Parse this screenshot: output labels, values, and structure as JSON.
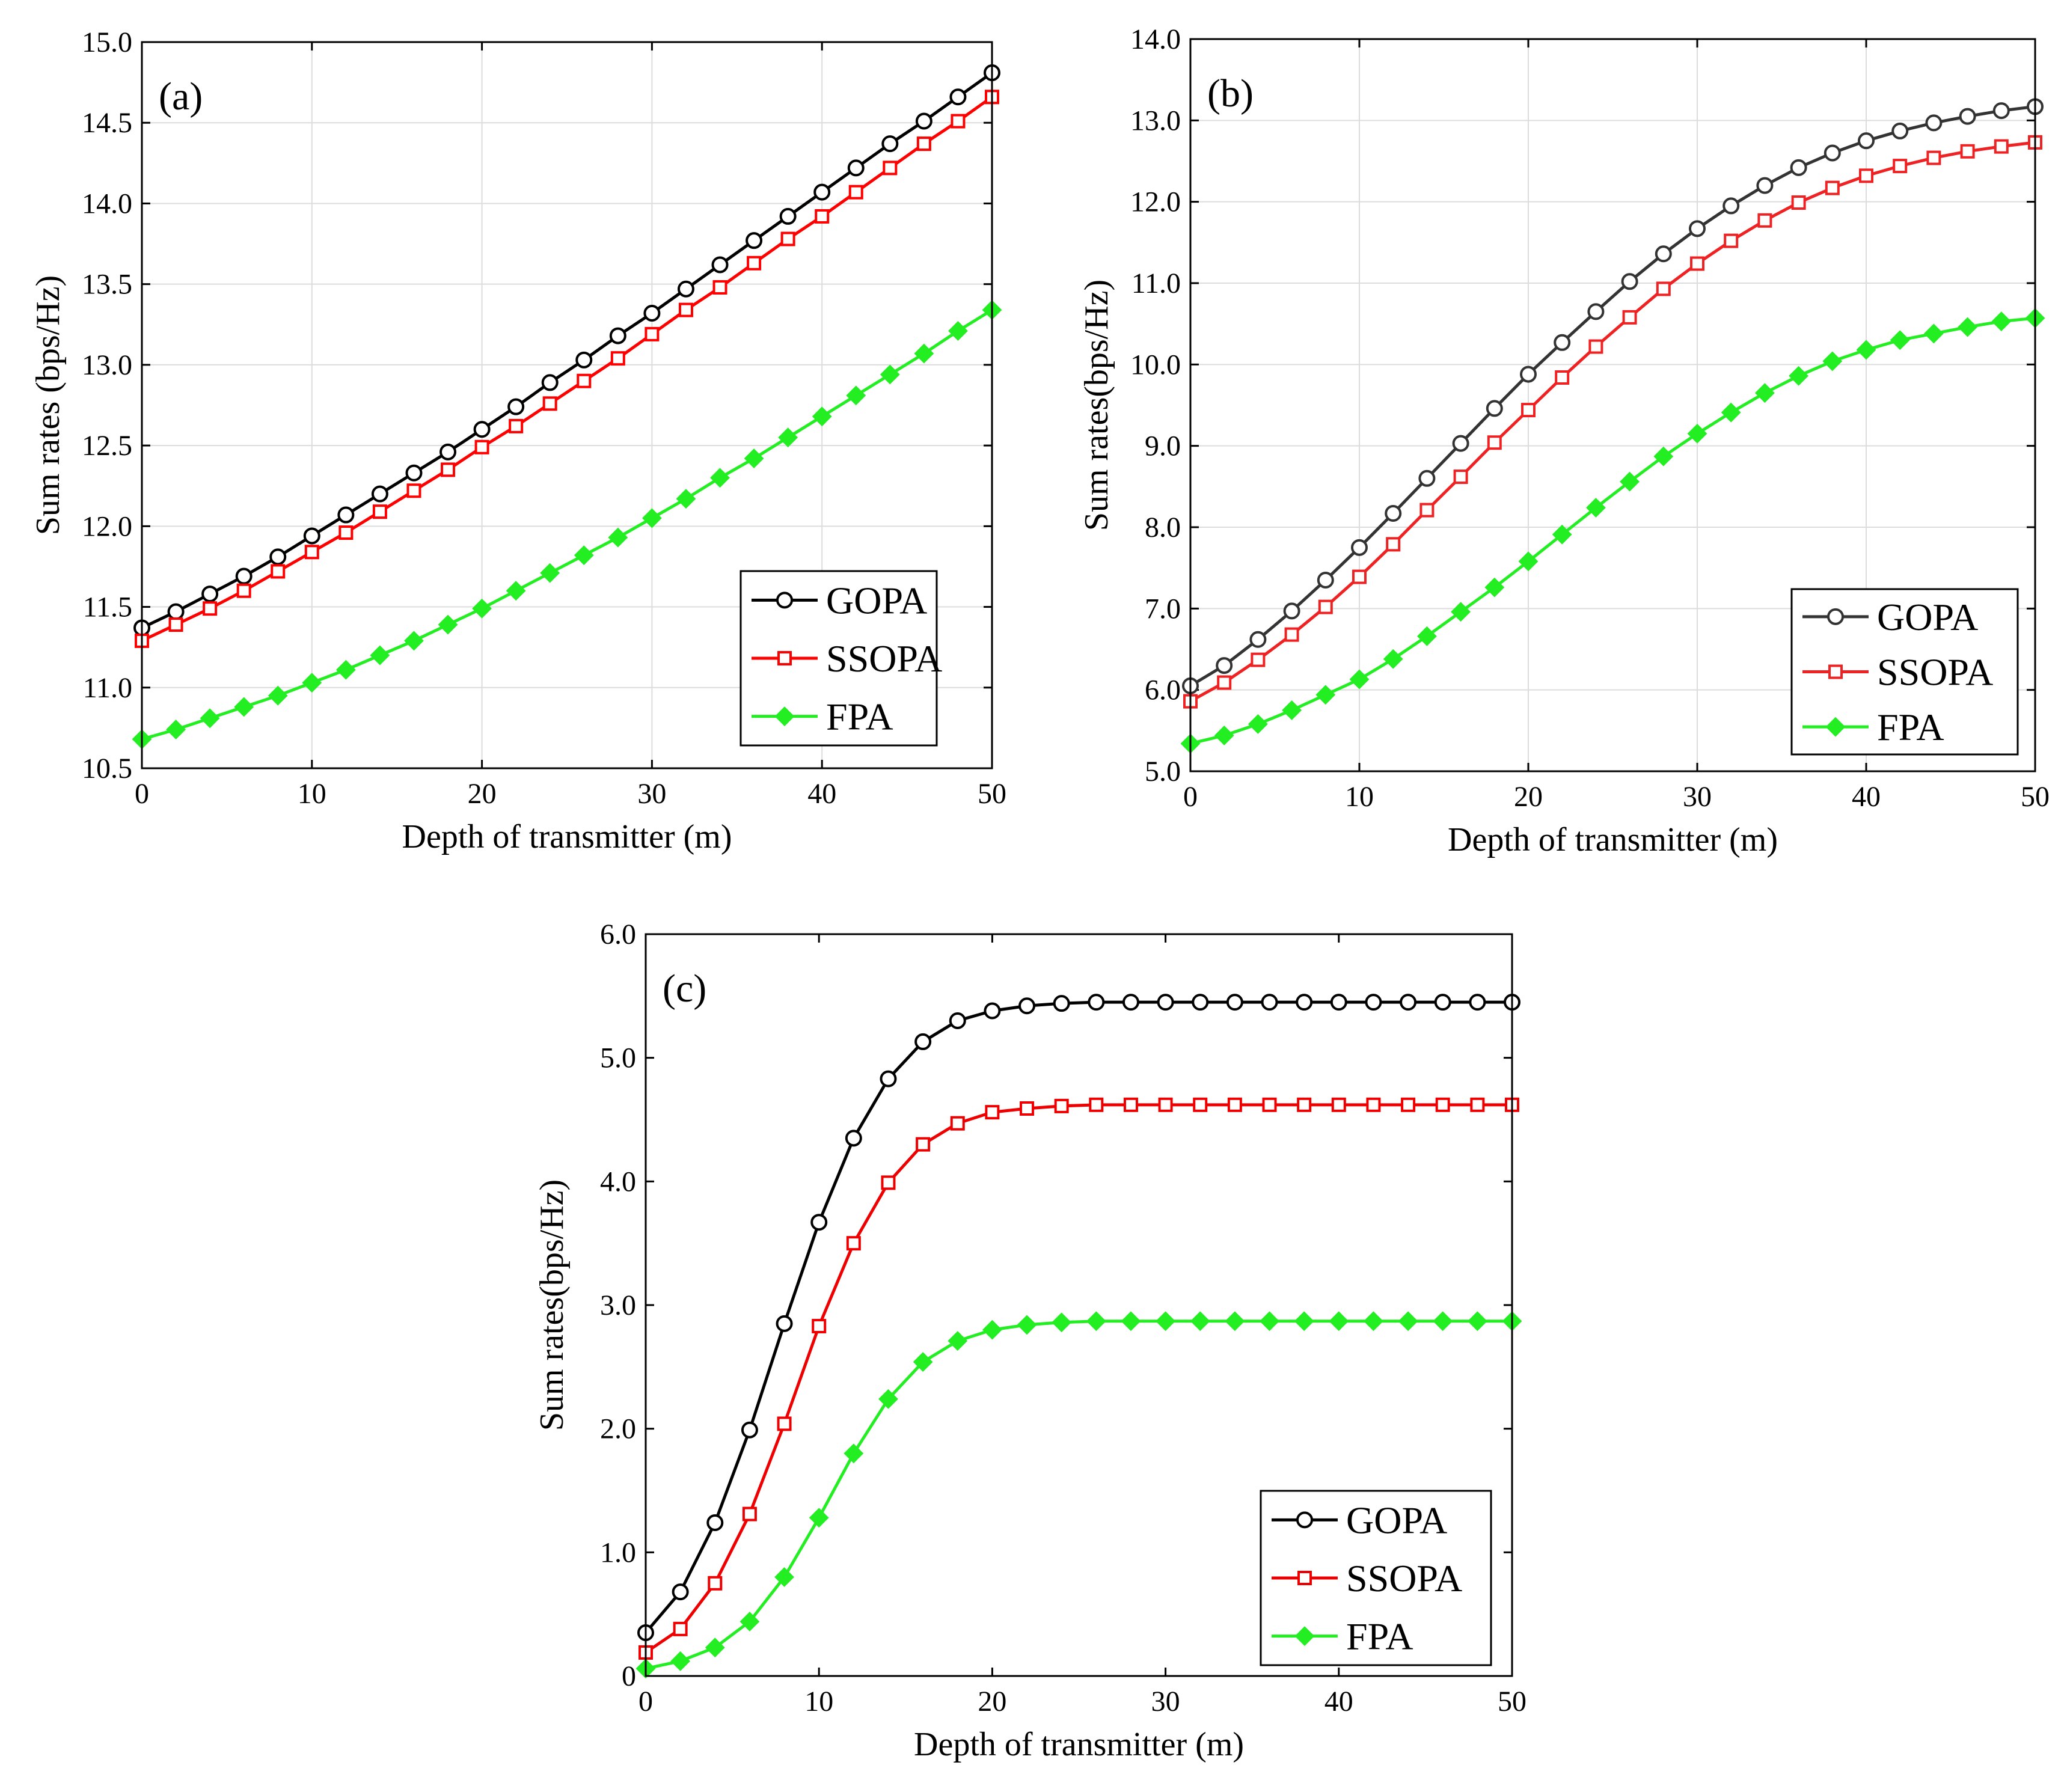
{
  "chart_data": [
    {
      "type": "line",
      "panel_label": "(a)",
      "xlabel": "Depth of transmitter (m)",
      "ylabel": "Sum rates (bps/Hz)",
      "xlim": [
        0,
        50
      ],
      "ylim": [
        10.5,
        15.0
      ],
      "xticks": [
        0,
        10,
        20,
        30,
        40,
        50
      ],
      "yticks": [
        10.5,
        11.0,
        11.5,
        12.0,
        12.5,
        13.0,
        13.5,
        14.0,
        14.5,
        15.0
      ],
      "ytick_labels": [
        "10.5",
        "11.0",
        "11.5",
        "12.0",
        "12.5",
        "13.0",
        "13.5",
        "14.0",
        "14.5",
        "15.0"
      ],
      "xtick_labels": [
        "0",
        "10",
        "20",
        "30",
        "40",
        "50"
      ],
      "grid": true,
      "legend_position": "bottom-right",
      "x": [
        0,
        2,
        4,
        6,
        8,
        10,
        12,
        14,
        16,
        18,
        20,
        22,
        24,
        26,
        28,
        30,
        32,
        34,
        36,
        38,
        40,
        42,
        44,
        46,
        48,
        50
      ],
      "series": [
        {
          "name": "GOPA",
          "color": "#000000",
          "marker": "circle",
          "values": [
            11.37,
            11.47,
            11.58,
            11.69,
            11.81,
            11.94,
            12.07,
            12.2,
            12.33,
            12.46,
            12.6,
            12.74,
            12.89,
            13.03,
            13.18,
            13.32,
            13.47,
            13.62,
            13.77,
            13.92,
            14.07,
            14.22,
            14.37,
            14.51,
            14.66,
            14.81
          ]
        },
        {
          "name": "SSOPA",
          "color": "#ff0000",
          "marker": "square",
          "values": [
            11.29,
            11.39,
            11.49,
            11.6,
            11.72,
            11.84,
            11.96,
            12.09,
            12.22,
            12.35,
            12.49,
            12.62,
            12.76,
            12.9,
            13.04,
            13.19,
            13.34,
            13.48,
            13.63,
            13.78,
            13.92,
            14.07,
            14.22,
            14.37,
            14.51,
            14.66
          ]
        },
        {
          "name": "FPA",
          "color": "#22ee22",
          "marker": "diamond",
          "values": [
            10.68,
            10.74,
            10.81,
            10.88,
            10.95,
            11.03,
            11.11,
            11.2,
            11.29,
            11.39,
            11.49,
            11.6,
            11.71,
            11.82,
            11.93,
            12.05,
            12.17,
            12.3,
            12.42,
            12.55,
            12.68,
            12.81,
            12.94,
            13.07,
            13.21,
            13.34
          ]
        }
      ]
    },
    {
      "type": "line",
      "panel_label": "(b)",
      "xlabel": "Depth of transmitter (m)",
      "ylabel": "Sum rates(bps/Hz)",
      "xlim": [
        0,
        50
      ],
      "ylim": [
        5.0,
        14.0
      ],
      "xticks": [
        0,
        10,
        20,
        30,
        40,
        50
      ],
      "yticks": [
        5,
        6,
        7,
        8,
        9,
        10,
        11,
        12,
        13,
        14
      ],
      "ytick_labels": [
        "5.0",
        "6.0",
        "7.0",
        "8.0",
        "9.0",
        "10.0",
        "11.0",
        "12.0",
        "13.0",
        "14.0"
      ],
      "xtick_labels": [
        "0",
        "10",
        "20",
        "30",
        "40",
        "50"
      ],
      "grid": true,
      "legend_position": "bottom-right",
      "x": [
        0,
        2,
        4,
        6,
        8,
        10,
        12,
        14,
        16,
        18,
        20,
        22,
        24,
        26,
        28,
        30,
        32,
        34,
        36,
        38,
        40,
        42,
        44,
        46,
        48,
        50
      ],
      "series": [
        {
          "name": "GOPA",
          "color": "#333333",
          "marker": "circle",
          "values": [
            6.05,
            6.3,
            6.62,
            6.97,
            7.35,
            7.75,
            8.17,
            8.6,
            9.03,
            9.46,
            9.88,
            10.27,
            10.65,
            11.02,
            11.36,
            11.67,
            11.95,
            12.2,
            12.42,
            12.6,
            12.75,
            12.87,
            12.97,
            13.05,
            13.12,
            13.17
          ]
        },
        {
          "name": "SSOPA",
          "color": "#ee2222",
          "marker": "square",
          "values": [
            5.86,
            6.09,
            6.37,
            6.68,
            7.02,
            7.39,
            7.79,
            8.21,
            8.62,
            9.04,
            9.44,
            9.84,
            10.22,
            10.58,
            10.93,
            11.24,
            11.52,
            11.77,
            11.99,
            12.17,
            12.32,
            12.44,
            12.54,
            12.62,
            12.68,
            12.73
          ]
        },
        {
          "name": "FPA",
          "color": "#22ee22",
          "marker": "diamond",
          "values": [
            5.34,
            5.44,
            5.58,
            5.75,
            5.94,
            6.13,
            6.38,
            6.66,
            6.96,
            7.26,
            7.58,
            7.91,
            8.24,
            8.56,
            8.87,
            9.15,
            9.41,
            9.65,
            9.86,
            10.04,
            10.18,
            10.3,
            10.38,
            10.46,
            10.53,
            10.57
          ]
        }
      ]
    },
    {
      "type": "line",
      "panel_label": "(c)",
      "xlabel": "Depth of transmitter (m)",
      "ylabel": "Sum rates(bps/Hz)",
      "xlim": [
        0,
        50
      ],
      "ylim": [
        0,
        6.0
      ],
      "xticks": [
        0,
        10,
        20,
        30,
        40,
        50
      ],
      "yticks": [
        0,
        1,
        2,
        3,
        4,
        5,
        6
      ],
      "ytick_labels": [
        "0",
        "1.0",
        "2.0",
        "3.0",
        "4.0",
        "5.0",
        "6.0"
      ],
      "xtick_labels": [
        "0",
        "10",
        "20",
        "30",
        "40",
        "50"
      ],
      "grid": false,
      "legend_position": "bottom-right",
      "x": [
        0,
        2,
        4,
        6,
        8,
        10,
        12,
        14,
        16,
        18,
        20,
        22,
        24,
        26,
        28,
        30,
        32,
        34,
        36,
        38,
        40,
        42,
        44,
        46,
        48,
        50
      ],
      "series": [
        {
          "name": "GOPA",
          "color": "#000000",
          "marker": "circle",
          "values": [
            0.35,
            0.68,
            1.24,
            1.99,
            2.85,
            3.67,
            4.35,
            4.83,
            5.13,
            5.3,
            5.38,
            5.42,
            5.44,
            5.45,
            5.45,
            5.45,
            5.45,
            5.45,
            5.45,
            5.45,
            5.45,
            5.45,
            5.45,
            5.45,
            5.45,
            5.45
          ]
        },
        {
          "name": "SSOPA",
          "color": "#ee0000",
          "marker": "square",
          "values": [
            0.19,
            0.38,
            0.75,
            1.31,
            2.04,
            2.83,
            3.5,
            3.99,
            4.3,
            4.47,
            4.56,
            4.59,
            4.61,
            4.62,
            4.62,
            4.62,
            4.62,
            4.62,
            4.62,
            4.62,
            4.62,
            4.62,
            4.62,
            4.62,
            4.62,
            4.62
          ]
        },
        {
          "name": "FPA",
          "color": "#22ee22",
          "marker": "diamond",
          "values": [
            0.06,
            0.12,
            0.23,
            0.44,
            0.8,
            1.28,
            1.8,
            2.24,
            2.54,
            2.71,
            2.8,
            2.84,
            2.86,
            2.87,
            2.87,
            2.87,
            2.87,
            2.87,
            2.87,
            2.87,
            2.87,
            2.87,
            2.87,
            2.87,
            2.87,
            2.87
          ]
        }
      ]
    }
  ]
}
